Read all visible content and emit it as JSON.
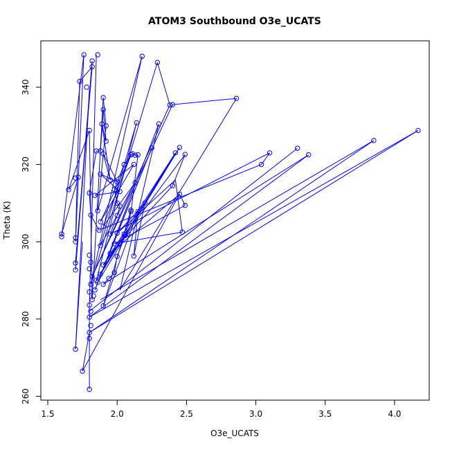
{
  "chart_data": {
    "type": "line",
    "title": "ATOM3 Southbound O3e_UCATS",
    "xlabel": "O3e_UCATS",
    "ylabel": "Theta (K)",
    "xlim": [
      1.45,
      4.25
    ],
    "ylim": [
      259,
      352
    ],
    "x_ticks": [
      "1.5",
      "2.0",
      "2.5",
      "3.0",
      "3.5",
      "4.0"
    ],
    "y_ticks": [
      "260",
      "280",
      "300",
      "320",
      "340"
    ],
    "color": "#0000ff",
    "marker": "open-circle",
    "series": [
      {
        "points": [
          [
            1.8,
            261.8
          ],
          [
            1.75,
            266.5
          ],
          [
            1.7,
            272.2
          ],
          [
            1.8,
            275.0
          ],
          [
            1.8,
            276.5
          ],
          [
            1.81,
            278.3
          ],
          [
            1.8,
            280.5
          ],
          [
            1.81,
            282.0
          ],
          [
            1.8,
            283.6
          ],
          [
            1.82,
            285.0
          ],
          [
            1.8,
            287.0
          ],
          [
            1.81,
            289.0
          ],
          [
            1.82,
            291.0
          ],
          [
            1.8,
            293.0
          ],
          [
            1.81,
            294.7
          ],
          [
            1.8,
            296.5
          ],
          [
            1.7,
            292.7
          ],
          [
            1.7,
            294.5
          ],
          [
            1.7,
            300.0
          ],
          [
            1.7,
            301.0
          ],
          [
            1.6,
            301.3
          ],
          [
            1.6,
            302.0
          ],
          [
            1.65,
            313.5
          ],
          [
            1.7,
            316.5
          ],
          [
            1.72,
            316.7
          ],
          [
            1.73,
            341.5
          ],
          [
            1.76,
            348.4
          ],
          [
            1.78,
            340.0
          ],
          [
            1.8,
            328.8
          ],
          [
            1.82,
            345.3
          ],
          [
            1.82,
            346.8
          ],
          [
            1.86,
            348.4
          ],
          [
            1.9,
            337.3
          ],
          [
            1.92,
            330.0
          ],
          [
            1.95,
            316.0
          ],
          [
            2.0,
            315.5
          ],
          [
            2.02,
            313.0
          ],
          [
            2.1,
            322.5
          ],
          [
            2.12,
            320.0
          ],
          [
            2.14,
            330.8
          ],
          [
            2.18,
            348.0
          ],
          [
            2.29,
            346.4
          ],
          [
            2.38,
            335.4
          ],
          [
            2.4,
            335.5
          ],
          [
            2.86,
            337.1
          ],
          [
            2.3,
            330.5
          ],
          [
            2.25,
            324.3
          ],
          [
            2.45,
            324.4
          ],
          [
            2.42,
            323.0
          ],
          [
            2.49,
            322.6
          ],
          [
            2.4,
            314.5
          ],
          [
            2.45,
            312.3
          ],
          [
            2.49,
            309.4
          ],
          [
            2.47,
            302.5
          ],
          [
            2.2,
            310.0
          ],
          [
            2.15,
            307.8
          ],
          [
            2.1,
            308.2
          ],
          [
            2.05,
            302.0
          ],
          [
            2.12,
            296.3
          ],
          [
            2.0,
            302.2
          ],
          [
            1.98,
            299.5
          ],
          [
            1.95,
            297.0
          ],
          [
            1.9,
            294.0
          ],
          [
            1.88,
            291.6
          ],
          [
            1.86,
            289.5
          ],
          [
            1.84,
            287.5
          ],
          [
            1.83,
            286.0
          ],
          [
            1.9,
            283.4
          ],
          [
            1.85,
            290.0
          ],
          [
            1.88,
            299.0
          ],
          [
            1.9,
            304.0
          ],
          [
            1.88,
            305.2
          ],
          [
            1.86,
            308.0
          ],
          [
            1.84,
            312.0
          ],
          [
            1.88,
            317.5
          ],
          [
            1.9,
            322.8
          ],
          [
            1.92,
            326.0
          ],
          [
            1.89,
            330.5
          ],
          [
            1.9,
            334.2
          ],
          [
            1.88,
            323.5
          ],
          [
            1.85,
            323.5
          ],
          [
            1.8,
            312.6
          ],
          [
            1.81,
            306.9
          ],
          [
            1.87,
            303.0
          ],
          [
            1.95,
            302.0
          ],
          [
            2.0,
            306.8
          ],
          [
            2.02,
            309.2
          ],
          [
            2.0,
            310.0
          ],
          [
            1.98,
            313.5
          ],
          [
            2.05,
            320.0
          ],
          [
            2.11,
            322.8
          ],
          [
            2.13,
            322.4
          ],
          [
            2.15,
            322.5
          ],
          [
            2.13,
            315.3
          ],
          [
            2.1,
            307.8
          ],
          [
            2.06,
            301.8
          ],
          [
            2.0,
            296.2
          ],
          [
            1.98,
            292.0
          ],
          [
            1.94,
            290.5
          ],
          [
            1.9,
            289.0
          ],
          [
            3.04,
            320.0
          ],
          [
            3.1,
            323.0
          ],
          [
            3.3,
            324.2
          ],
          [
            3.38,
            322.5
          ],
          [
            3.85,
            326.2
          ],
          [
            4.17,
            328.8
          ]
        ],
        "lines": [
          [
            1.8,
            261.8,
            1.8,
            283.6
          ],
          [
            1.8,
            283.6,
            1.85,
            348.4
          ],
          [
            1.75,
            266.5,
            2.45,
            312.3
          ],
          [
            1.75,
            266.5,
            1.8,
            276.5
          ],
          [
            1.8,
            276.5,
            3.85,
            326.2
          ],
          [
            1.8,
            276.5,
            4.17,
            328.8
          ],
          [
            4.17,
            328.8,
            1.8,
            280.5
          ],
          [
            1.8,
            280.5,
            3.38,
            322.5
          ],
          [
            1.8,
            282.0,
            3.3,
            324.2
          ],
          [
            1.7,
            272.2,
            1.8,
            339.5
          ],
          [
            1.7,
            272.2,
            1.75,
            300.0
          ],
          [
            1.6,
            301.3,
            1.76,
            348.4
          ],
          [
            1.76,
            348.4,
            1.7,
            300.0
          ],
          [
            1.7,
            300.0,
            1.73,
            341.5
          ],
          [
            1.73,
            341.5,
            1.82,
            345.3
          ],
          [
            1.82,
            345.3,
            1.7,
            294.5
          ],
          [
            1.7,
            294.5,
            1.82,
            346.8
          ],
          [
            1.82,
            346.8,
            1.7,
            292.7
          ],
          [
            1.6,
            302.0,
            1.72,
            316.7
          ],
          [
            1.72,
            316.7,
            1.65,
            313.5
          ],
          [
            1.65,
            313.5,
            1.8,
            328.8
          ],
          [
            1.8,
            328.8,
            1.82,
            285.0
          ],
          [
            1.82,
            285.0,
            1.9,
            337.3
          ],
          [
            1.9,
            337.3,
            1.92,
            330.0
          ],
          [
            1.92,
            330.0,
            1.86,
            308.0
          ],
          [
            1.86,
            308.0,
            2.18,
            348.0
          ],
          [
            2.18,
            348.0,
            1.81,
            289.0
          ],
          [
            1.81,
            289.0,
            2.29,
            346.4
          ],
          [
            2.29,
            346.4,
            2.38,
            335.4
          ],
          [
            2.38,
            335.4,
            1.82,
            291.0
          ],
          [
            1.82,
            291.0,
            2.4,
            335.5
          ],
          [
            2.4,
            335.5,
            2.86,
            337.1
          ],
          [
            2.86,
            337.1,
            2.02,
            287.5
          ],
          [
            2.02,
            287.5,
            2.3,
            330.5
          ],
          [
            2.3,
            330.5,
            1.84,
            287.5
          ],
          [
            1.84,
            287.5,
            2.25,
            324.3
          ],
          [
            2.25,
            324.3,
            1.86,
            289.5
          ],
          [
            1.86,
            289.5,
            2.45,
            324.4
          ],
          [
            2.45,
            324.4,
            1.88,
            291.6
          ],
          [
            1.88,
            291.6,
            2.42,
            323.0
          ],
          [
            2.42,
            323.0,
            1.9,
            294.0
          ],
          [
            1.9,
            294.0,
            2.49,
            322.6
          ],
          [
            2.49,
            322.6,
            2.4,
            314.5
          ],
          [
            2.4,
            314.5,
            1.95,
            297.0
          ],
          [
            1.95,
            297.0,
            2.45,
            312.3
          ],
          [
            2.45,
            312.3,
            2.49,
            309.4
          ],
          [
            2.49,
            309.4,
            1.98,
            299.5
          ],
          [
            1.98,
            299.5,
            2.47,
            302.5
          ],
          [
            2.47,
            302.5,
            2.42,
            316.0
          ],
          [
            2.42,
            316.0,
            2.0,
            302.2
          ],
          [
            2.0,
            302.2,
            2.2,
            310.0
          ],
          [
            2.2,
            310.0,
            2.12,
            296.3
          ],
          [
            2.12,
            296.3,
            2.15,
            307.8
          ],
          [
            2.15,
            307.8,
            1.9,
            283.4
          ],
          [
            1.9,
            283.4,
            2.1,
            308.2
          ],
          [
            2.1,
            308.2,
            2.05,
            302.0
          ],
          [
            2.05,
            302.0,
            1.85,
            290.0
          ],
          [
            1.85,
            290.0,
            2.14,
            330.8
          ],
          [
            2.14,
            330.8,
            1.88,
            299.0
          ],
          [
            1.88,
            299.0,
            2.13,
            315.3
          ],
          [
            2.13,
            315.3,
            1.9,
            304.0
          ],
          [
            1.9,
            304.0,
            2.1,
            322.5
          ],
          [
            2.1,
            322.5,
            1.88,
            305.2
          ],
          [
            1.88,
            305.2,
            2.12,
            320.0
          ],
          [
            2.12,
            320.0,
            1.84,
            312.0
          ],
          [
            1.84,
            312.0,
            2.02,
            313.0
          ],
          [
            2.02,
            313.0,
            1.88,
            317.5
          ],
          [
            1.88,
            317.5,
            2.0,
            315.5
          ],
          [
            2.0,
            315.5,
            1.9,
            322.8
          ],
          [
            1.9,
            322.8,
            1.95,
            316.0
          ],
          [
            1.95,
            316.0,
            1.89,
            330.5
          ],
          [
            1.89,
            330.5,
            1.92,
            326.0
          ],
          [
            1.92,
            326.0,
            1.9,
            334.2
          ],
          [
            1.9,
            334.2,
            1.88,
            323.5
          ],
          [
            1.88,
            323.5,
            1.85,
            323.5
          ],
          [
            1.85,
            323.5,
            1.8,
            312.6
          ],
          [
            1.8,
            312.6,
            1.81,
            306.9
          ],
          [
            1.81,
            306.9,
            1.87,
            303.0
          ],
          [
            1.87,
            303.0,
            3.04,
            320.0
          ],
          [
            3.04,
            320.0,
            3.1,
            323.0
          ],
          [
            3.1,
            323.0,
            1.95,
            302.0
          ],
          [
            1.95,
            302.0,
            2.0,
            306.8
          ],
          [
            2.0,
            306.8,
            2.02,
            309.2
          ],
          [
            2.02,
            309.2,
            2.0,
            310.0
          ],
          [
            2.0,
            310.0,
            1.98,
            313.5
          ],
          [
            1.98,
            313.5,
            2.05,
            320.0
          ],
          [
            2.05,
            320.0,
            2.11,
            322.8
          ],
          [
            2.11,
            322.8,
            2.13,
            322.4
          ],
          [
            2.13,
            322.4,
            2.15,
            322.5
          ],
          [
            2.15,
            322.5,
            2.1,
            307.8
          ],
          [
            2.1,
            307.8,
            2.06,
            301.8
          ],
          [
            2.06,
            301.8,
            2.0,
            296.2
          ],
          [
            2.0,
            296.2,
            1.98,
            292.0
          ],
          [
            1.98,
            292.0,
            1.94,
            290.5
          ],
          [
            1.94,
            290.5,
            1.9,
            289.0
          ],
          [
            1.9,
            289.0,
            3.38,
            322.5
          ],
          [
            1.88,
            285.0,
            3.85,
            326.2
          ]
        ]
      }
    ]
  }
}
